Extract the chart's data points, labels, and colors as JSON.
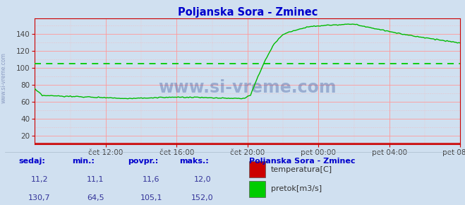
{
  "title": "Poljanska Sora - Zminec",
  "title_color": "#0000cc",
  "bg_color": "#d0e0f0",
  "plot_bg_color": "#d0e0f0",
  "grid_color_v": "#ff9999",
  "grid_color_h": "#ff9999",
  "xticklabels": [
    "čet 12:00",
    "čet 16:00",
    "čet 20:00",
    "pet 00:00",
    "pet 04:00",
    "pet 08:00"
  ],
  "yticks": [
    20,
    40,
    60,
    80,
    100,
    120,
    140
  ],
  "ylim": [
    10,
    158
  ],
  "xlim_min": 0,
  "xlim_max": 288,
  "avg_line_value": 105.1,
  "avg_line_color": "#00cc00",
  "temp_color": "#cc0000",
  "flow_color": "#00bb00",
  "watermark_text": "www.si-vreme.com",
  "watermark_color": "#1a3a8a",
  "watermark_alpha": 0.3,
  "watermark_fontsize": 17,
  "spine_color": "#cc0000",
  "tick_color": "#444444",
  "tick_fontsize": 7.5,
  "bottom_text_color": "#0000cc",
  "legend_title": "Poljanska Sora - Zminec",
  "legend_items": [
    {
      "label": "temperatura[C]",
      "color": "#cc0000"
    },
    {
      "label": "pretok[m3/s]",
      "color": "#00cc00"
    }
  ],
  "stats_headers": [
    "sedaj:",
    "min.:",
    "povpr.:",
    "maks.:"
  ],
  "stats_row1": [
    "11,2",
    "11,1",
    "11,6",
    "12,0"
  ],
  "stats_row2": [
    "130,7",
    "64,5",
    "105,1",
    "152,0"
  ],
  "sidebar_text": "www.si-vreme.com"
}
